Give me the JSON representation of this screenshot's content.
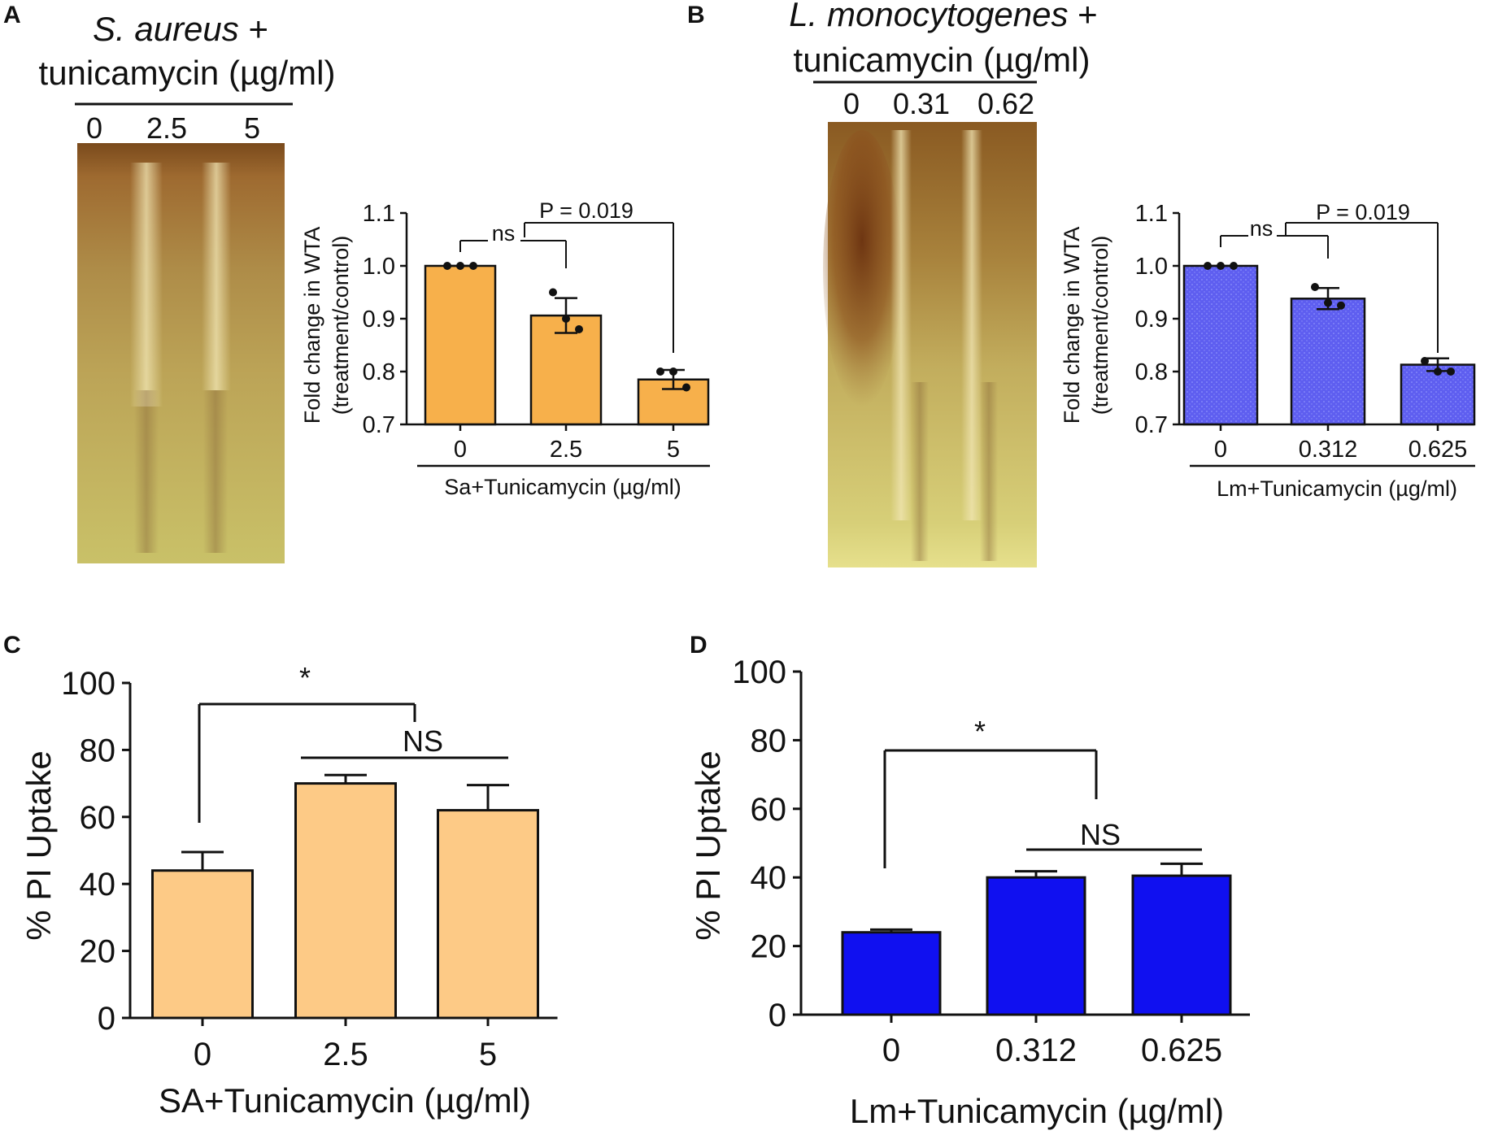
{
  "colors": {
    "sa_small_bar": "#f7b04b",
    "lm_small_bar": "#5e5ef0",
    "sa_big_bar": "#fdca86",
    "lm_big_bar": "#1010f0",
    "axis": "#111111"
  },
  "gels": [
    {
      "letter": "A",
      "title_italic": "S. aureus",
      "title_tail": " +",
      "title_line2": "tunicamycin (µg/ml)",
      "lanes": [
        "0",
        "2.5",
        "5"
      ]
    },
    {
      "letter": "B",
      "title_italic": "L. monocytogenes",
      "title_tail": " +",
      "title_line2": "tunicamycin (µg/ml)",
      "lanes": [
        "0",
        "0.31",
        "0.62"
      ]
    }
  ],
  "chart_data": [
    {
      "panel": "A",
      "type": "bar",
      "categories": [
        "0",
        "2.5",
        "5"
      ],
      "values": [
        1.0,
        0.906,
        0.785
      ],
      "errors": [
        0.0,
        0.033,
        0.018
      ],
      "points": [
        [
          1.0,
          1.0,
          1.0
        ],
        [
          0.95,
          0.9,
          0.88
        ],
        [
          0.8,
          0.8,
          0.77
        ]
      ],
      "xlabel": "Sa+Tunicamycin (µg/ml)",
      "ylabel_line1": "Fold change in WTA",
      "ylabel_line2": "(treatment/control)",
      "ylim": [
        0.7,
        1.1
      ],
      "yticks": [
        "0.7",
        "0.8",
        "0.9",
        "1.0",
        "1.1"
      ],
      "annotations": [
        "ns",
        "P = 0.019"
      ],
      "color_key": "sa_small_bar"
    },
    {
      "panel": "B",
      "type": "bar",
      "categories": [
        "0",
        "0.312",
        "0.625"
      ],
      "values": [
        1.0,
        0.938,
        0.813
      ],
      "errors": [
        0.0,
        0.02,
        0.012
      ],
      "points": [
        [
          1.0,
          1.0,
          1.0
        ],
        [
          0.96,
          0.93,
          0.925
        ],
        [
          0.82,
          0.8,
          0.8
        ]
      ],
      "xlabel": "Lm+Tunicamycin (µg/ml)",
      "ylabel_line1": "Fold change in WTA",
      "ylabel_line2": "(treatment/control)",
      "ylim": [
        0.7,
        1.1
      ],
      "yticks": [
        "0.7",
        "0.8",
        "0.9",
        "1.0",
        "1.1"
      ],
      "annotations": [
        "ns",
        "P = 0.019"
      ],
      "color_key": "lm_small_bar"
    },
    {
      "panel": "C",
      "type": "bar",
      "categories": [
        "0",
        "2.5",
        "5"
      ],
      "values": [
        44,
        70,
        62
      ],
      "errors": [
        5.5,
        2.5,
        7.5
      ],
      "xlabel": "SA+Tunicamycin (µg/ml)",
      "ylabel": "% PI Uptake",
      "ylim": [
        0,
        100
      ],
      "yticks": [
        "0",
        "20",
        "40",
        "60",
        "80",
        "100"
      ],
      "annotations": [
        "*",
        "NS"
      ],
      "color_key": "sa_big_bar"
    },
    {
      "panel": "D",
      "type": "bar",
      "categories": [
        "0",
        "0.312",
        "0.625"
      ],
      "values": [
        24,
        40,
        40.5
      ],
      "errors": [
        0.8,
        1.8,
        3.5
      ],
      "xlabel": "Lm+Tunicamycin (µg/ml)",
      "ylabel": "% PI Uptake",
      "ylim": [
        0,
        100
      ],
      "yticks": [
        "0",
        "20",
        "40",
        "60",
        "80",
        "100"
      ],
      "annotations": [
        "*",
        "NS"
      ],
      "color_key": "lm_big_bar"
    }
  ]
}
